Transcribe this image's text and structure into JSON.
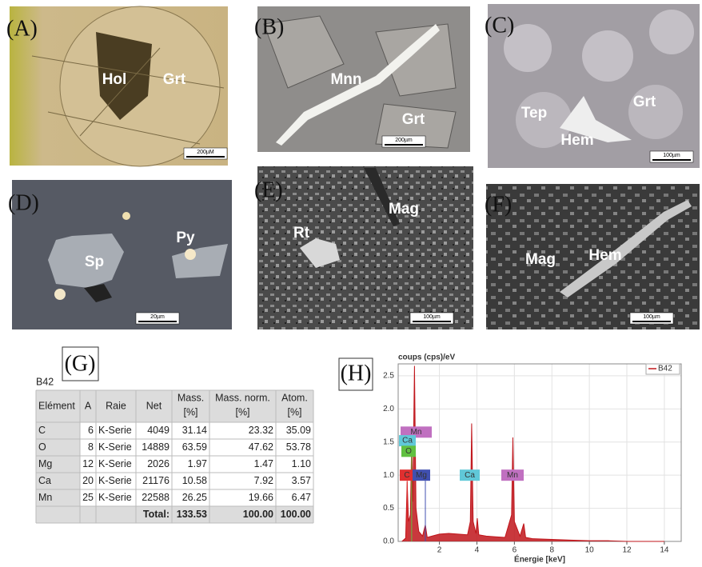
{
  "panels": [
    {
      "label": "(A)",
      "minerals": [
        "Hol",
        "Grt"
      ],
      "scale": "200µM"
    },
    {
      "label": "(B)",
      "minerals": [
        "Mnn",
        "Grt"
      ],
      "scale": "200µm"
    },
    {
      "label": "(C)",
      "minerals": [
        "Tep",
        "Grt",
        "Hem"
      ],
      "scale": "100µm"
    },
    {
      "label": "(D)",
      "minerals": [
        "Sp",
        "Py"
      ],
      "scale": "20µm"
    },
    {
      "label": "(E)",
      "minerals": [
        "Rt",
        "Mag"
      ],
      "scale": "100µm"
    },
    {
      "label": "(F)",
      "minerals": [
        "Mag",
        "Hem"
      ],
      "scale": "100µm"
    }
  ],
  "table": {
    "label": "(G)",
    "sample": "B42",
    "header": [
      "Elément",
      "A",
      "Raie",
      "Net",
      [
        "Mass.",
        "[%]"
      ],
      [
        "Mass. norm.",
        "[%]"
      ],
      [
        "Atom.",
        "[%]"
      ]
    ],
    "rows": [
      [
        "C",
        "6",
        "K-Serie",
        "4049",
        "31.14",
        "23.32",
        "35.09"
      ],
      [
        "O",
        "8",
        "K-Serie",
        "14889",
        "63.59",
        "47.62",
        "53.78"
      ],
      [
        "Mg",
        "12",
        "K-Serie",
        "2026",
        "1.97",
        "1.47",
        "1.10"
      ],
      [
        "Ca",
        "20",
        "K-Serie",
        "21176",
        "10.58",
        "7.92",
        "3.57"
      ],
      [
        "Mn",
        "25",
        "K-Serie",
        "22588",
        "26.25",
        "19.66",
        "6.47"
      ]
    ],
    "total": {
      "label": "Total:",
      "mass": "133.53",
      "norm": "100.00",
      "atom": "100.00"
    }
  },
  "chart_data": {
    "type": "line",
    "panel_label": "(H)",
    "y_label": "coups (cps)/eV",
    "x_label": "Énergie [keV]",
    "xlim": [
      -0.2,
      14.9
    ],
    "ylim": [
      0,
      2.68
    ],
    "xticks": [
      2,
      4,
      6,
      8,
      10,
      12,
      14
    ],
    "yticks": [
      {
        "value": 0,
        "label": "0.0"
      },
      {
        "value": 0.5,
        "label": "0.5"
      },
      {
        "value": 1,
        "label": "1.0"
      },
      {
        "value": 1.5,
        "label": "1.5"
      },
      {
        "value": 2,
        "label": "2.0"
      },
      {
        "value": 2.5,
        "label": "2.5"
      }
    ],
    "grid": true,
    "legend": "top-right",
    "series": [
      {
        "name": "B42",
        "color": "#c0151b",
        "x": [
          0,
          0.2,
          0.28,
          0.35,
          0.45,
          0.52,
          0.58,
          0.67,
          0.75,
          0.9,
          1.1,
          1.25,
          1.35,
          1.6,
          2,
          2.5,
          3,
          3.5,
          3.65,
          3.72,
          3.8,
          3.95,
          4.02,
          4.1,
          4.5,
          5,
          5.5,
          5.85,
          5.92,
          6,
          6.3,
          6.5,
          6.6,
          7,
          8,
          9,
          10,
          11,
          12,
          13,
          14
        ],
        "values": [
          0,
          0.05,
          0.9,
          0.3,
          0.4,
          1.5,
          0.6,
          2.65,
          0.5,
          0.15,
          0.08,
          0.25,
          0.06,
          0.08,
          0.11,
          0.12,
          0.11,
          0.1,
          0.3,
          1.78,
          0.3,
          0.12,
          0.35,
          0.1,
          0.08,
          0.07,
          0.06,
          0.4,
          1.57,
          0.3,
          0.08,
          0.27,
          0.06,
          0.04,
          0.03,
          0.02,
          0.01,
          0.01,
          0,
          0,
          0
        ]
      }
    ],
    "element_tags": [
      {
        "text": "Mn",
        "color": "#c070c0"
      },
      {
        "text": "Ca",
        "color": "#60c8d8"
      },
      {
        "text": "O",
        "color": "#60c040"
      },
      {
        "text": "C",
        "color": "#e03030"
      },
      {
        "text": "Mg",
        "color": "#4050b0"
      },
      {
        "text": "Ca",
        "color": "#60c8d8"
      },
      {
        "text": "Mn",
        "color": "#c070c0"
      }
    ]
  }
}
